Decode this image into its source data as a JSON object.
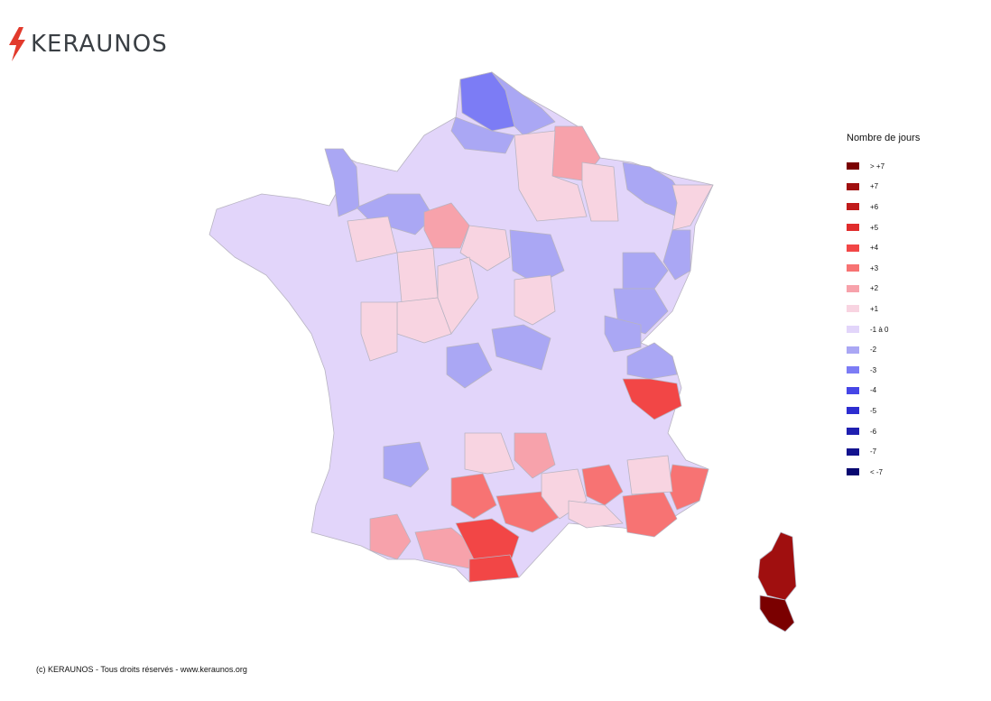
{
  "brand": {
    "name": "KERAUNOS"
  },
  "legend": {
    "title": "Nombre de jours",
    "items": [
      {
        "label": "> +7",
        "color": "#7a0000"
      },
      {
        "label": "+7",
        "color": "#a00f0f"
      },
      {
        "label": "+6",
        "color": "#c01b1b"
      },
      {
        "label": "+5",
        "color": "#e02c2c"
      },
      {
        "label": "+4",
        "color": "#f24646"
      },
      {
        "label": "+3",
        "color": "#f77373"
      },
      {
        "label": "+2",
        "color": "#f7a2ab"
      },
      {
        "label": "+1",
        "color": "#f8d4e1"
      },
      {
        "label": "-1 à 0",
        "color": "#e2d5fa"
      },
      {
        "label": "-2",
        "color": "#aaa7f4"
      },
      {
        "label": "-3",
        "color": "#7c7cf5"
      },
      {
        "label": "-4",
        "color": "#4646e6"
      },
      {
        "label": "-5",
        "color": "#2d2dd0"
      },
      {
        "label": "-6",
        "color": "#1f1fb0"
      },
      {
        "label": "-7",
        "color": "#13138f"
      },
      {
        "label": "< -7",
        "color": "#070770"
      }
    ]
  },
  "footer": {
    "copyright": "(c) KERAUNOS - Tous droits réservés - www.keraunos.org"
  }
}
